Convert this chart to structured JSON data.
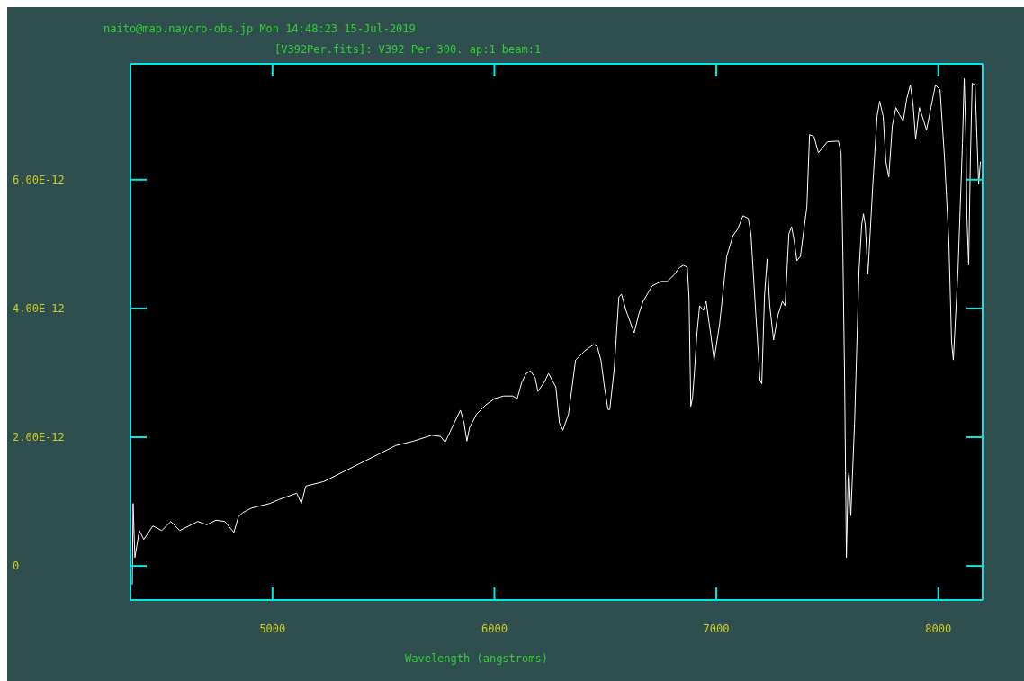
{
  "chart_data": {
    "type": "line",
    "title": "naito@map.nayoro-obs.jp Mon 14:48:23 15-Jul-2019",
    "subtitle": "[V392Per.fits]: V392 Per 300. ap:1 beam:1",
    "xlabel": "Wavelength (angstroms)",
    "x": [
      4368,
      4372,
      4380,
      4400,
      4420,
      4461,
      4501,
      4542,
      4582,
      4623,
      4663,
      4704,
      4745,
      4785,
      4826,
      4846,
      4866,
      4907,
      4988,
      5028,
      5069,
      5109,
      5130,
      5150,
      5231,
      5312,
      5393,
      5474,
      5555,
      5636,
      5717,
      5758,
      5778,
      5790,
      5819,
      5847,
      5863,
      5876,
      5888,
      5920,
      5961,
      6001,
      6042,
      6082,
      6103,
      6123,
      6143,
      6163,
      6184,
      6196,
      6224,
      6244,
      6277,
      6293,
      6309,
      6334,
      6366,
      6407,
      6447,
      6463,
      6480,
      6496,
      6512,
      6520,
      6540,
      6561,
      6573,
      6593,
      6630,
      6650,
      6670,
      6711,
      6751,
      6779,
      6812,
      6832,
      6852,
      6869,
      6877,
      6885,
      6893,
      6901,
      6913,
      6925,
      6942,
      6954,
      6974,
      6990,
      7015,
      7047,
      7075,
      7096,
      7120,
      7144,
      7156,
      7177,
      7197,
      7205,
      7217,
      7229,
      7241,
      7258,
      7278,
      7298,
      7310,
      7327,
      7339,
      7351,
      7363,
      7379,
      7408,
      7420,
      7440,
      7460,
      7501,
      7550,
      7562,
      7570,
      7578,
      7586,
      7594,
      7598,
      7606,
      7623,
      7643,
      7655,
      7663,
      7671,
      7683,
      7704,
      7724,
      7736,
      7752,
      7764,
      7777,
      7793,
      7809,
      7825,
      7842,
      7858,
      7874,
      7886,
      7898,
      7915,
      7935,
      7947,
      7967,
      7987,
      8008,
      8028,
      8048,
      8060,
      8068,
      8089,
      8109,
      8117,
      8125,
      8129,
      8137,
      8145,
      8153,
      8166,
      8182,
      8190
    ],
    "series": [
      {
        "color": "#ffffff",
        "values": [
          -2.9e-13,
          9.7e-13,
          1.3e-13,
          5.5e-13,
          4.1e-13,
          6.2e-13,
          5.5e-13,
          6.9e-13,
          5.5e-13,
          6.2e-13,
          6.9e-13,
          6.4e-13,
          7.1e-13,
          6.9e-13,
          5.2e-13,
          7.6e-13,
          8.3e-13,
          9e-13,
          9.7e-13,
          1.03e-12,
          1.08e-12,
          1.13e-12,
          9.7e-13,
          1.24e-12,
          1.31e-12,
          1.45e-12,
          1.59e-12,
          1.73e-12,
          1.87e-12,
          1.94e-12,
          2.03e-12,
          2.01e-12,
          1.92e-12,
          2.01e-12,
          2.22e-12,
          2.42e-12,
          2.22e-12,
          1.94e-12,
          2.15e-12,
          2.36e-12,
          2.5e-12,
          2.6e-12,
          2.64e-12,
          2.64e-12,
          2.6e-12,
          2.85e-12,
          2.99e-12,
          3.03e-12,
          2.92e-12,
          2.71e-12,
          2.85e-12,
          2.99e-12,
          2.78e-12,
          2.22e-12,
          2.11e-12,
          2.36e-12,
          3.2e-12,
          3.34e-12,
          3.44e-12,
          3.41e-12,
          3.2e-12,
          2.78e-12,
          2.43e-12,
          2.43e-12,
          3.06e-12,
          4.18e-12,
          4.22e-12,
          3.97e-12,
          3.62e-12,
          3.9e-12,
          4.11e-12,
          4.35e-12,
          4.42e-12,
          4.42e-12,
          4.53e-12,
          4.63e-12,
          4.67e-12,
          4.64e-12,
          4.18e-12,
          2.48e-12,
          2.62e-12,
          2.99e-12,
          3.62e-12,
          4.04e-12,
          3.97e-12,
          4.11e-12,
          3.62e-12,
          3.2e-12,
          3.76e-12,
          4.81e-12,
          5.13e-12,
          5.23e-12,
          5.44e-12,
          5.4e-12,
          5.16e-12,
          3.97e-12,
          2.88e-12,
          2.83e-12,
          4.18e-12,
          4.77e-12,
          4.04e-12,
          3.51e-12,
          3.9e-12,
          4.11e-12,
          4.04e-12,
          5.16e-12,
          5.27e-12,
          5.05e-12,
          4.74e-12,
          4.81e-12,
          5.58e-12,
          6.7e-12,
          6.67e-12,
          6.42e-12,
          6.59e-12,
          6.6e-12,
          6.42e-12,
          4.88e-12,
          2.92e-12,
          1.3e-13,
          1.38e-12,
          1.45e-12,
          7.8e-13,
          2.22e-12,
          4.6e-12,
          5.3e-12,
          5.47e-12,
          5.3e-12,
          4.53e-12,
          5.86e-12,
          6.98e-12,
          7.22e-12,
          6.98e-12,
          6.28e-12,
          6.04e-12,
          6.84e-12,
          7.12e-12,
          7.01e-12,
          6.91e-12,
          7.26e-12,
          7.47e-12,
          7.19e-12,
          6.63e-12,
          7.12e-12,
          6.91e-12,
          6.77e-12,
          7.12e-12,
          7.47e-12,
          7.4e-12,
          6.35e-12,
          5.02e-12,
          3.48e-12,
          3.2e-12,
          4.6e-12,
          6.56e-12,
          7.57e-12,
          6.63e-12,
          5.44e-12,
          4.67e-12,
          6.35e-12,
          7.5e-12,
          7.47e-12,
          5.93e-12,
          6.28e-12
        ]
      }
    ],
    "xlim": [
      4360,
      8200
    ],
    "xticks": [
      5000,
      6000,
      7000,
      8000
    ],
    "ylim": [
      -5.3e-13,
      7.8e-12
    ],
    "yticks": [
      0,
      {
        "value": 2e-12,
        "label": "2.00E-12"
      },
      {
        "value": 4e-12,
        "label": "4.00E-12"
      },
      {
        "value": 6e-12,
        "label": "6.00E-12"
      }
    ]
  }
}
